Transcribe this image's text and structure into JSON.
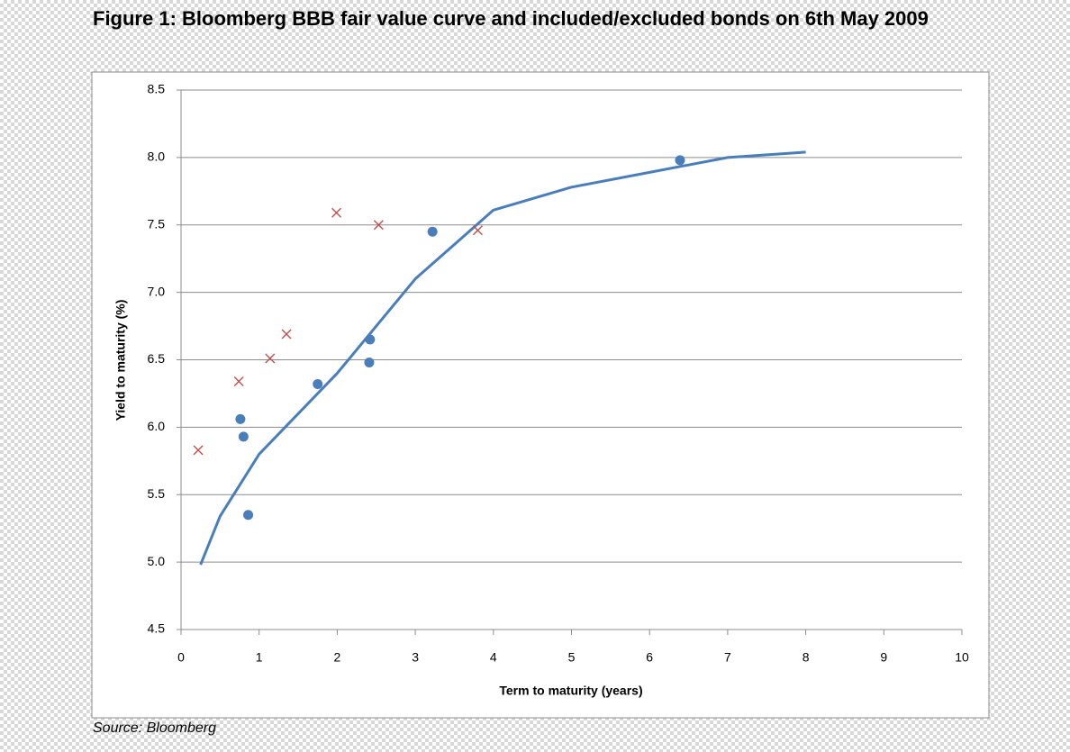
{
  "chart_data": {
    "type": "scatter",
    "title": "Figure 1: Bloomberg BBB fair value curve and included/excluded bonds on 6th May 2009",
    "source": "Source: Bloomberg",
    "x_label": "Term to maturity (years)",
    "y_label": "Yield to maturity (%)",
    "xlim": [
      0,
      10
    ],
    "xticks": [
      0,
      1,
      2,
      3,
      4,
      5,
      6,
      7,
      8,
      9,
      10
    ],
    "ylim": [
      4.5,
      8.5
    ],
    "yticks": [
      4.5,
      {
        "value": 5,
        "label": "5.0"
      },
      5.5,
      {
        "value": 6,
        "label": "6.0"
      },
      6.5,
      {
        "value": 7,
        "label": "7.0"
      },
      7.5,
      {
        "value": 8,
        "label": "8.0"
      },
      8.5
    ],
    "grid": true,
    "series": [
      {
        "mode": "line",
        "color": "#4a7ebb",
        "x": [
          0.25,
          0.5,
          1,
          2,
          3,
          4,
          5,
          6,
          7,
          8
        ],
        "values": [
          4.98,
          5.34,
          5.8,
          6.4,
          7.1,
          7.61,
          7.78,
          7.89,
          8.0,
          8.04
        ]
      },
      {
        "mode": "circle",
        "color": "#4a7ebb",
        "x": [
          0.76,
          0.8,
          0.86,
          1.75,
          2.42,
          2.41,
          3.22,
          6.39
        ],
        "values": [
          6.06,
          5.93,
          5.35,
          6.32,
          6.65,
          6.48,
          7.45,
          7.98
        ]
      },
      {
        "mode": "cross",
        "color": "#c0504d",
        "x": [
          0.22,
          0.74,
          1.14,
          1.35,
          1.99,
          2.53,
          3.8
        ],
        "values": [
          5.83,
          6.34,
          6.51,
          6.69,
          7.59,
          7.5,
          7.46
        ]
      }
    ]
  }
}
